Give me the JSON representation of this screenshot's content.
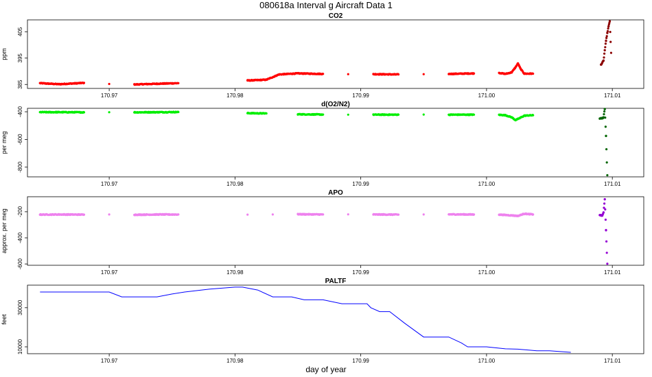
{
  "figure": {
    "title": "080618a   Interval g Aircraft Data 1",
    "xlabel": "day of year"
  },
  "colors": {
    "co2": "#ff0000",
    "co2_dark": "#8b0000",
    "o2n2": "#00ee00",
    "o2n2_dark": "#006400",
    "apo": "#ee82ee",
    "apo_dark": "#9400d3",
    "paltf": "#0000ff"
  },
  "chart_data": [
    {
      "type": "scatter",
      "title": "CO2",
      "ylabel": "ppm",
      "xlim": [
        170.9635,
        171.0125
      ],
      "ylim": [
        383.5,
        409.5
      ],
      "xticks": [
        170.97,
        170.98,
        170.99,
        171.0,
        171.01
      ],
      "xtick_labels": [
        "170.97",
        "170.98",
        "170.99",
        "171.00",
        "171.01"
      ],
      "yticks": [
        385,
        395,
        405
      ],
      "ytick_labels": [
        "385",
        "395",
        "405"
      ],
      "series": [
        {
          "color_key": "co2",
          "x": [
            170.9645,
            170.966,
            170.968,
            170.97,
            170.972,
            170.974,
            170.9755,
            170.981,
            170.9825,
            170.9835,
            170.985,
            170.987,
            170.989,
            170.991,
            170.993,
            170.995,
            170.997,
            170.999,
            171.001,
            171.0015,
            171.002,
            171.0023,
            171.0025,
            171.0027,
            171.003,
            171.0037
          ],
          "y": [
            385.5,
            385.1,
            385.6,
            385.2,
            385.0,
            385.3,
            385.5,
            386.5,
            386.8,
            388.8,
            389.2,
            389.0,
            388.9,
            388.9,
            388.8,
            388.9,
            389.0,
            389.2,
            389.4,
            389.0,
            389.6,
            391.5,
            393.0,
            391.0,
            389.1,
            389.1
          ]
        },
        {
          "color_key": "co2_dark",
          "x": [
            171.0091,
            171.0093,
            171.0094,
            171.0095,
            171.0096,
            171.0097,
            171.0098,
            171.0099
          ],
          "y": [
            392.5,
            394.0,
            398.0,
            401.5,
            404.5,
            407.0,
            409.0,
            397.0
          ]
        }
      ]
    },
    {
      "type": "scatter",
      "title": "d(O2/N2)",
      "ylabel": "per meg",
      "xlim": [
        170.9635,
        171.0125
      ],
      "ylim": [
        -870,
        -375
      ],
      "xticks": [
        170.97,
        170.98,
        170.99,
        171.0,
        171.01
      ],
      "xtick_labels": [
        "170.97",
        "170.98",
        "170.99",
        "171.00",
        "171.01"
      ],
      "yticks": [
        -400,
        -600,
        -800
      ],
      "ytick_labels": [
        "-400",
        "-600",
        "-800"
      ],
      "series": [
        {
          "color_key": "o2n2",
          "x": [
            170.9645,
            170.966,
            170.968,
            170.97,
            170.972,
            170.974,
            170.9755,
            170.981,
            170.9825,
            170.985,
            170.987,
            170.989,
            170.991,
            170.993,
            170.995,
            170.997,
            170.999,
            171.001,
            171.0015,
            171.002,
            171.0023,
            171.0025,
            171.0028,
            171.003,
            171.0037
          ],
          "y": [
            -403,
            -403,
            -404,
            -403,
            -404,
            -403,
            -402,
            -410,
            -412,
            -418,
            -420,
            -421,
            -421,
            -421,
            -420,
            -421,
            -421,
            -422,
            -425,
            -440,
            -460,
            -452,
            -438,
            -428,
            -425
          ]
        },
        {
          "color_key": "o2n2_dark",
          "x": [
            171.009,
            171.0091,
            171.0092,
            171.0093,
            171.0094,
            171.0095,
            171.0096
          ],
          "y": [
            -450,
            -445,
            -448,
            -440,
            -380,
            -575,
            -858
          ]
        }
      ]
    },
    {
      "type": "scatter",
      "title": "APO",
      "ylabel": "approx. per meg",
      "xlim": [
        170.9635,
        171.0125
      ],
      "ylim": [
        -610,
        -85
      ],
      "xticks": [
        170.97,
        170.98,
        170.99,
        171.0,
        171.01
      ],
      "xtick_labels": [
        "170.97",
        "170.98",
        "170.99",
        "171.00",
        "171.01"
      ],
      "yticks": [
        -200,
        -400,
        -600
      ],
      "ytick_labels": [
        "-200",
        "-400",
        "-600"
      ],
      "series": [
        {
          "color_key": "apo",
          "x": [
            170.9645,
            170.966,
            170.968,
            170.97,
            170.972,
            170.974,
            170.9755,
            170.981,
            170.983,
            170.985,
            170.987,
            170.989,
            170.991,
            170.993,
            170.995,
            170.997,
            170.999,
            171.001,
            171.002,
            171.0025,
            171.003,
            171.0037
          ],
          "y": [
            -222,
            -221,
            -222,
            -221,
            -223,
            -221,
            -221,
            -222,
            -221,
            -219,
            -221,
            -220,
            -221,
            -222,
            -221,
            -220,
            -221,
            -222,
            -228,
            -232,
            -215,
            -221
          ]
        },
        {
          "color_key": "apo_dark",
          "x": [
            171.009,
            171.0091,
            171.0092,
            171.0093,
            171.0094,
            171.0095,
            171.0096
          ],
          "y": [
            -225,
            -228,
            -230,
            -205,
            -105,
            -340,
            -598
          ]
        }
      ]
    },
    {
      "type": "line",
      "title": "PALTF",
      "ylabel": "feet",
      "xlim": [
        170.9635,
        171.0125
      ],
      "ylim": [
        6500,
        41500
      ],
      "xticks": [
        170.97,
        170.98,
        170.99,
        171.0,
        171.01
      ],
      "xtick_labels": [
        "170.97",
        "170.98",
        "170.99",
        "171.00",
        "171.01"
      ],
      "yticks": [
        10000,
        30000
      ],
      "ytick_labels": [
        "10000",
        "30000"
      ],
      "series": [
        {
          "color_key": "paltf",
          "x": [
            170.9645,
            170.97,
            170.971,
            170.9738,
            170.975,
            170.976,
            170.978,
            170.98,
            170.9806,
            170.9818,
            170.983,
            170.9845,
            170.9855,
            170.987,
            170.9885,
            170.989,
            170.9905,
            170.9908,
            170.9915,
            170.9923,
            170.9935,
            170.995,
            170.997,
            170.998,
            170.9985,
            171.0,
            171.0015,
            171.0025,
            171.004,
            171.005,
            171.0067
          ],
          "y": [
            38000,
            38000,
            35500,
            35500,
            37000,
            38000,
            39500,
            40500,
            40500,
            39000,
            35500,
            35500,
            34000,
            34000,
            32000,
            32000,
            32000,
            30000,
            28000,
            28000,
            22000,
            15000,
            15000,
            12000,
            10000,
            10000,
            9000,
            8800,
            8000,
            8000,
            7200
          ]
        }
      ]
    }
  ]
}
